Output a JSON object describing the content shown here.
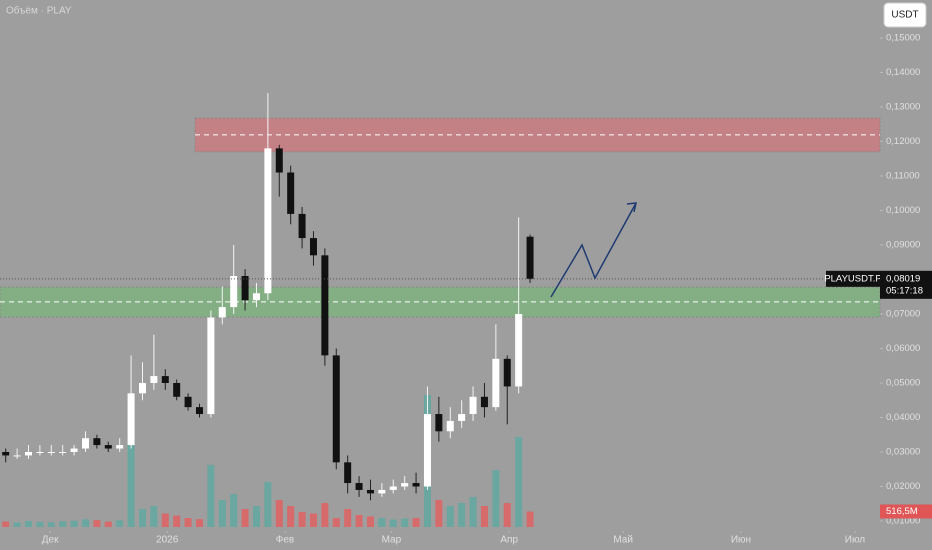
{
  "chart_data": {
    "type": "candlestick",
    "legend": "Объём · PLAY",
    "currency": "USDT",
    "symbol": "PLAYUSDT.P",
    "countdown": "05:17:18",
    "x": [
      1.5,
      4.5,
      7.5,
      10.5,
      13.5,
      16.5,
      19.5,
      22.5,
      25.5,
      28.5,
      31.5,
      34.5,
      37.5,
      40.5,
      43.5,
      46.5,
      49.5,
      52.5,
      55.5,
      58.5,
      61.5,
      64.5,
      67.5,
      70.5,
      73.5,
      76.5,
      79.5,
      82.5,
      85.5,
      88.5,
      91.5,
      94.5,
      97.5,
      100.5,
      103.5,
      106.5,
      109.5,
      112.5,
      115.5,
      118.5,
      121.5,
      124.5,
      127.5,
      130.5,
      133.5,
      136.5,
      139.5
    ],
    "open": [
      0.03,
      0.029,
      0.029,
      0.03,
      0.03,
      0.03,
      0.03,
      0.031,
      0.034,
      0.032,
      0.031,
      0.032,
      0.047,
      0.05,
      0.052,
      0.05,
      0.046,
      0.043,
      0.041,
      0.069,
      0.072,
      0.081,
      0.074,
      0.076,
      0.118,
      0.111,
      0.099,
      0.092,
      0.087,
      0.058,
      0.027,
      0.021,
      0.019,
      0.018,
      0.019,
      0.02,
      0.021,
      0.02,
      0.041,
      0.036,
      0.039,
      0.041,
      0.046,
      0.043,
      0.057,
      0.049,
      0.0924
    ],
    "high": [
      0.031,
      0.031,
      0.032,
      0.032,
      0.032,
      0.032,
      0.032,
      0.036,
      0.035,
      0.033,
      0.034,
      0.058,
      0.056,
      0.064,
      0.054,
      0.051,
      0.047,
      0.044,
      0.071,
      0.078,
      0.09,
      0.083,
      0.079,
      0.134,
      0.119,
      0.113,
      0.101,
      0.094,
      0.089,
      0.06,
      0.029,
      0.023,
      0.022,
      0.021,
      0.022,
      0.023,
      0.024,
      0.049,
      0.046,
      0.043,
      0.045,
      0.049,
      0.05,
      0.067,
      0.058,
      0.098,
      0.093
    ],
    "low": [
      0.027,
      0.028,
      0.028,
      0.029,
      0.029,
      0.029,
      0.029,
      0.03,
      0.031,
      0.03,
      0.03,
      0.031,
      0.045,
      0.048,
      0.048,
      0.045,
      0.042,
      0.04,
      0.04,
      0.067,
      0.07,
      0.071,
      0.072,
      0.074,
      0.104,
      0.096,
      0.089,
      0.084,
      0.055,
      0.025,
      0.018,
      0.017,
      0.016,
      0.017,
      0.018,
      0.019,
      0.018,
      0.019,
      0.033,
      0.034,
      0.037,
      0.039,
      0.04,
      0.042,
      0.038,
      0.047,
      0.079
    ],
    "close": [
      0.029,
      0.029,
      0.03,
      0.03,
      0.03,
      0.03,
      0.031,
      0.034,
      0.032,
      0.031,
      0.032,
      0.047,
      0.05,
      0.052,
      0.05,
      0.046,
      0.043,
      0.041,
      0.069,
      0.072,
      0.081,
      0.074,
      0.076,
      0.118,
      0.111,
      0.099,
      0.092,
      0.087,
      0.058,
      0.027,
      0.021,
      0.019,
      0.018,
      0.019,
      0.02,
      0.021,
      0.02,
      0.041,
      0.036,
      0.039,
      0.041,
      0.046,
      0.043,
      0.057,
      0.049,
      0.07,
      0.08019
    ],
    "up_color": "#ffffff",
    "down_color": "#111111",
    "volume": {
      "values": [
        180,
        150,
        200,
        170,
        160,
        190,
        210,
        260,
        230,
        180,
        220,
        3000,
        600,
        700,
        450,
        380,
        300,
        260,
        2070,
        900,
        1100,
        600,
        700,
        1500,
        900,
        700,
        500,
        450,
        800,
        300,
        600,
        400,
        350,
        300,
        250,
        280,
        300,
        4400,
        900,
        700,
        800,
        1000,
        700,
        1900,
        800,
        3000,
        516.5
      ],
      "ylim": [
        0,
        5000
      ],
      "up_color": "#5fa8a0",
      "down_color": "#e06060"
    },
    "last_price": {
      "value": 0.08019,
      "label": "0,08019"
    },
    "last_volume": {
      "value": 516.5,
      "label": "516,5M"
    },
    "zones": [
      {
        "low": 0.117,
        "high": 0.1268,
        "mid": 0.1219,
        "color": "#c97a80"
      },
      {
        "low": 0.0691,
        "high": 0.0778,
        "mid": 0.0735,
        "color": "#7fb27f"
      }
    ],
    "xlim": [
      0,
      231.6
    ],
    "xticks": [
      {
        "value": 13.2,
        "label": "Дек"
      },
      {
        "value": 44,
        "label": "2026"
      },
      {
        "value": 75,
        "label": "Фев"
      },
      {
        "value": 103,
        "label": "Мар"
      },
      {
        "value": 134,
        "label": "Апр"
      },
      {
        "value": 164,
        "label": "Май"
      },
      {
        "value": 195,
        "label": "Июн"
      },
      {
        "value": 225,
        "label": "Июл"
      }
    ],
    "ylim": [
      0.00826,
      0.161
    ],
    "yticks": [
      {
        "value": 0.15,
        "label": "0,15000"
      },
      {
        "value": 0.14,
        "label": "0,14000"
      },
      {
        "value": 0.13,
        "label": "0,13000"
      },
      {
        "value": 0.12,
        "label": "0,12000"
      },
      {
        "value": 0.11,
        "label": "0,11000"
      },
      {
        "value": 0.1,
        "label": "0,10000"
      },
      {
        "value": 0.09,
        "label": "0,09000"
      },
      {
        "value": 0.08,
        "label": "0,08000"
      },
      {
        "value": 0.07,
        "label": "0,07000"
      },
      {
        "value": 0.06,
        "label": "0,06000"
      },
      {
        "value": 0.05,
        "label": "0,05000"
      },
      {
        "value": 0.04,
        "label": "0,04000"
      },
      {
        "value": 0.03,
        "label": "0,03000"
      },
      {
        "value": 0.02,
        "label": "0,02000"
      },
      {
        "value": 0.01,
        "label": "0,01000"
      }
    ]
  }
}
